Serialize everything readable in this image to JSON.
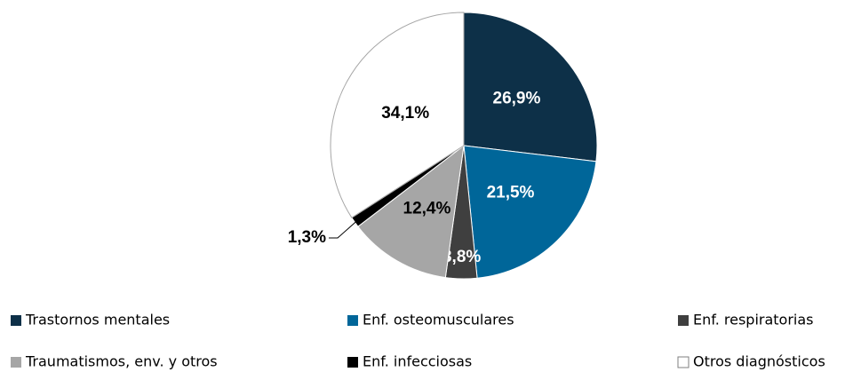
{
  "chart_data": {
    "type": "pie",
    "categories": [
      "Trastornos mentales",
      "Enf. osteomusculares",
      "Enf. respiratorias",
      "Traumatismos, env. y otros",
      "Enf. infecciosas",
      "Otros diagnósticos"
    ],
    "values": [
      26.9,
      21.5,
      3.8,
      12.4,
      1.3,
      34.1
    ],
    "value_labels": [
      "26,9%",
      "21,5%",
      "3,8%",
      "12,4%",
      "1,3%",
      "34,1%"
    ],
    "colors": [
      "#0d3048",
      "#006699",
      "#3f3f3f",
      "#a6a6a6",
      "#000000",
      "#ffffff"
    ]
  }
}
